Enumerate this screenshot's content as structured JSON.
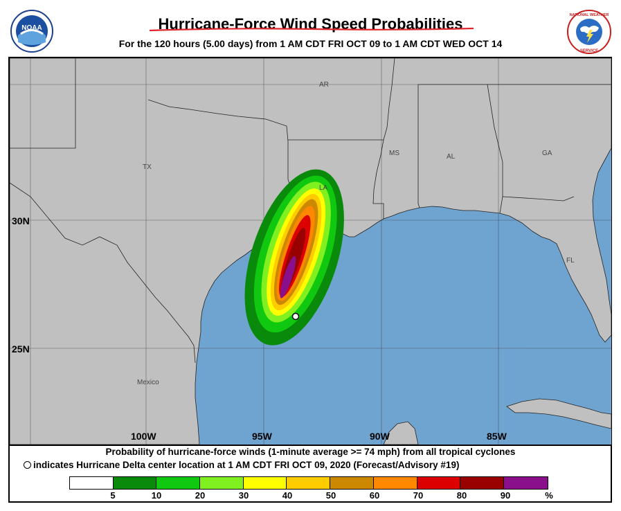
{
  "header": {
    "title": "Hurricane-Force Wind Speed Probabilities",
    "subtitle": "For the 120 hours (5.00 days) from 1 AM CDT FRI OCT 09 to 1 AM CDT WED OCT 14",
    "left_logo": "NOAA",
    "right_logo": "NATIONAL WEATHER SERVICE"
  },
  "map": {
    "ocean_color": "#6fa3d0",
    "land_color": "#c0c0c0",
    "latitude_labels": [
      "30N",
      "25N"
    ],
    "longitude_labels": [
      "100W",
      "95W",
      "90W",
      "85W"
    ],
    "place_labels": [
      "AR",
      "TX",
      "LA",
      "MS",
      "AL",
      "GA",
      "FL",
      "Mexico"
    ],
    "storm_center_icon": "storm-center-marker"
  },
  "caption": {
    "line1": "Probability of hurricane-force winds (1-minute average >= 74 mph) from all tropical cyclones",
    "line2": "indicates Hurricane Delta center location at 1 AM CDT FRI OCT 09, 2020 (Forecast/Advisory #19)"
  },
  "legend": {
    "colors": [
      "#ffffff",
      "#0a8a0a",
      "#10c810",
      "#80f020",
      "#ffff00",
      "#ffcc00",
      "#cc8800",
      "#ff8800",
      "#dd0000",
      "#990000",
      "#8a0f8a"
    ],
    "labels": [
      "5",
      "10",
      "20",
      "30",
      "40",
      "50",
      "60",
      "70",
      "80",
      "90",
      "%"
    ]
  }
}
